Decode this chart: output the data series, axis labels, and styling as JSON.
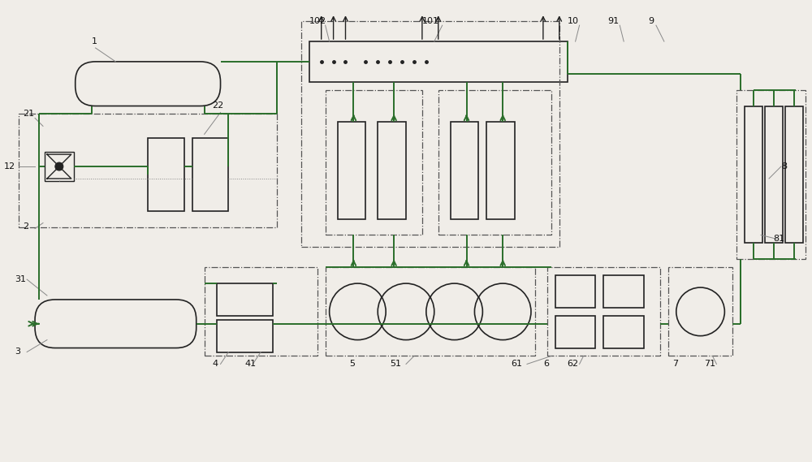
{
  "bg_color": "#f0ede8",
  "lc": "#2a6e2a",
  "bc": "#222222",
  "gray": "#888888",
  "fig_width": 10.0,
  "fig_height": 5.69
}
